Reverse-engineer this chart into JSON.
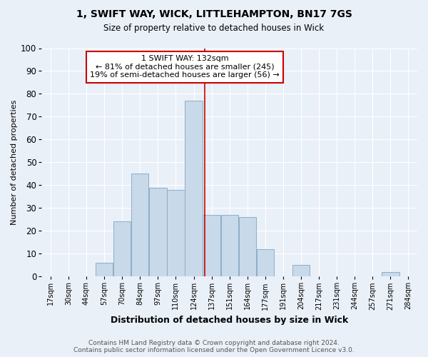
{
  "title1": "1, SWIFT WAY, WICK, LITTLEHAMPTON, BN17 7GS",
  "title2": "Size of property relative to detached houses in Wick",
  "xlabel": "Distribution of detached houses by size in Wick",
  "ylabel": "Number of detached properties",
  "bin_labels": [
    "17sqm",
    "30sqm",
    "44sqm",
    "57sqm",
    "70sqm",
    "84sqm",
    "97sqm",
    "110sqm",
    "124sqm",
    "137sqm",
    "151sqm",
    "164sqm",
    "177sqm",
    "191sqm",
    "204sqm",
    "217sqm",
    "231sqm",
    "244sqm",
    "257sqm",
    "271sqm",
    "284sqm"
  ],
  "bar_values": [
    0,
    0,
    0,
    6,
    24,
    45,
    39,
    38,
    77,
    27,
    27,
    26,
    12,
    0,
    5,
    0,
    0,
    0,
    0,
    2,
    0
  ],
  "bar_color": "#c8d9ea",
  "bar_edge_color": "#8aafc8",
  "property_bin_index": 8.6,
  "annotation_text": "1 SWIFT WAY: 132sqm\n← 81% of detached houses are smaller (245)\n19% of semi-detached houses are larger (56) →",
  "annotation_box_color": "#ffffff",
  "annotation_box_edge": "#cc0000",
  "vline_color": "#cc0000",
  "ylim": [
    0,
    100
  ],
  "background_color": "#eaf0f8",
  "grid_color": "#ffffff",
  "footer": "Contains HM Land Registry data © Crown copyright and database right 2024.\nContains public sector information licensed under the Open Government Licence v3.0."
}
